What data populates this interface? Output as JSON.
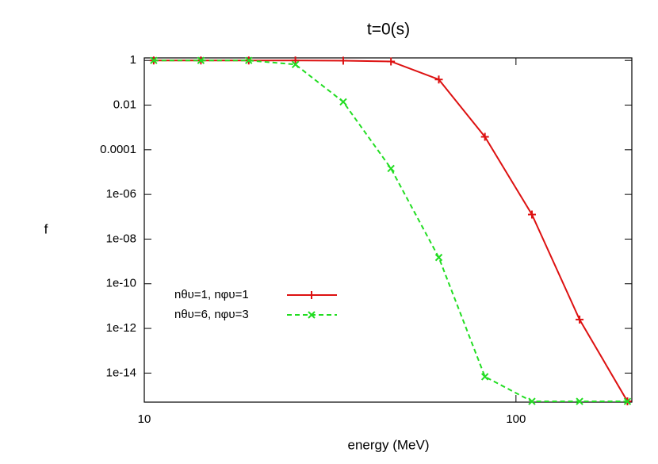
{
  "chart_data": {
    "type": "line",
    "title": "t=0(s)",
    "x_label": "energy (MeV)",
    "y_label": "f",
    "x": [
      10.6,
      14.2,
      19.1,
      25.5,
      34.3,
      46.1,
      62.0,
      82.5,
      110.4,
      148.3,
      199.5
    ],
    "series": [
      {
        "name": "nθυ=1, nφυ=1",
        "color": "#dd1111",
        "marker": "+",
        "dash": false,
        "values": [
          1,
          1,
          1,
          1,
          0.98,
          0.9,
          0.14,
          0.00038,
          1.26e-07,
          2.5e-12,
          5.4e-16
        ]
      },
      {
        "name": "nθυ=6, nφυ=3",
        "color": "#22dd22",
        "marker": "x",
        "dash": true,
        "values": [
          1,
          1,
          1,
          0.66,
          0.014,
          1.45e-05,
          1.5e-09,
          6.9e-15,
          5.4e-16,
          5.4e-16,
          5.4e-16
        ]
      }
    ],
    "xlim": [
      10,
      205
    ],
    "ylim": [
      5e-16,
      1.3
    ],
    "xscale": "log",
    "yscale": "log",
    "xticks": [
      10,
      100
    ],
    "yticks": [
      1,
      0.01,
      0.0001,
      {
        "value": 1e-06,
        "label": "1e-06"
      },
      {
        "value": 1e-08,
        "label": "1e-08"
      },
      {
        "value": 1e-10,
        "label": "1e-10"
      },
      {
        "value": 1e-12,
        "label": "1e-12"
      },
      {
        "value": 1e-14,
        "label": "1e-14"
      }
    ],
    "legend": "bottom-left",
    "grid": false
  }
}
